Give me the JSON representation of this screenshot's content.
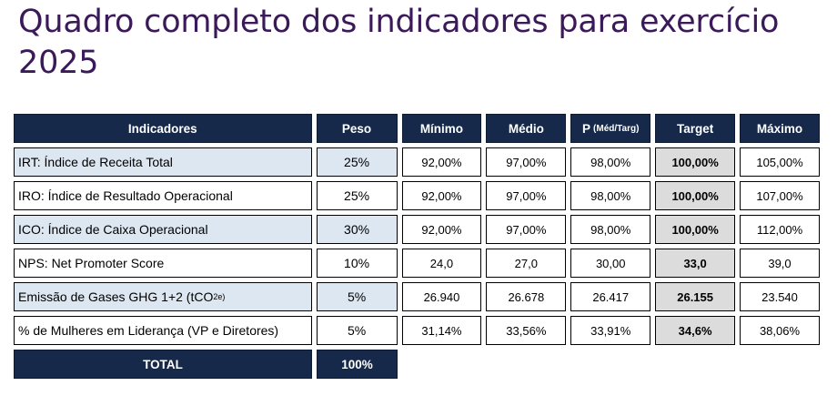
{
  "title": "Quadro completo dos indicadores para exercício 2025",
  "table": {
    "headers": {
      "indicadores": "Indicadores",
      "peso": "Peso",
      "minimo": "Mínimo",
      "medio": "Médio",
      "p": "P",
      "p_note": "(Méd/Targ)",
      "target": "Target",
      "maximo": "Máximo"
    },
    "rows": [
      {
        "indicador": "IRT: Índice de Receita Total",
        "peso": "25%",
        "minimo": "92,00%",
        "medio": "97,00%",
        "p": "98,00%",
        "target": "100,00%",
        "maximo": "105,00%"
      },
      {
        "indicador": "IRO: Índice de Resultado Operacional",
        "peso": "25%",
        "minimo": "92,00%",
        "medio": "97,00%",
        "p": "98,00%",
        "target": "100,00%",
        "maximo": "107,00%"
      },
      {
        "indicador": "ICO: Índice de Caixa Operacional",
        "peso": "30%",
        "minimo": "92,00%",
        "medio": "97,00%",
        "p": "98,00%",
        "target": "100,00%",
        "maximo": "112,00%"
      },
      {
        "indicador": "NPS: Net Promoter Score",
        "peso": "10%",
        "minimo": "24,0",
        "medio": "27,0",
        "p": "30,00",
        "target": "33,0",
        "maximo": "39,0"
      },
      {
        "indicador": "Emissão de Gases GHG 1+2 (tCO",
        "indicador_sub": "2e)",
        "peso": "5%",
        "minimo": "26.940",
        "medio": "26.678",
        "p": "26.417",
        "target": "26.155",
        "maximo": "23.540"
      },
      {
        "indicador": "% de Mulheres em Liderança (VP e Diretores)",
        "peso": "5%",
        "minimo": "31,14%",
        "medio": "33,56%",
        "p": "33,91%",
        "target": "34,6%",
        "maximo": "38,06%"
      }
    ],
    "total": {
      "label": "TOTAL",
      "peso": "100%"
    }
  }
}
